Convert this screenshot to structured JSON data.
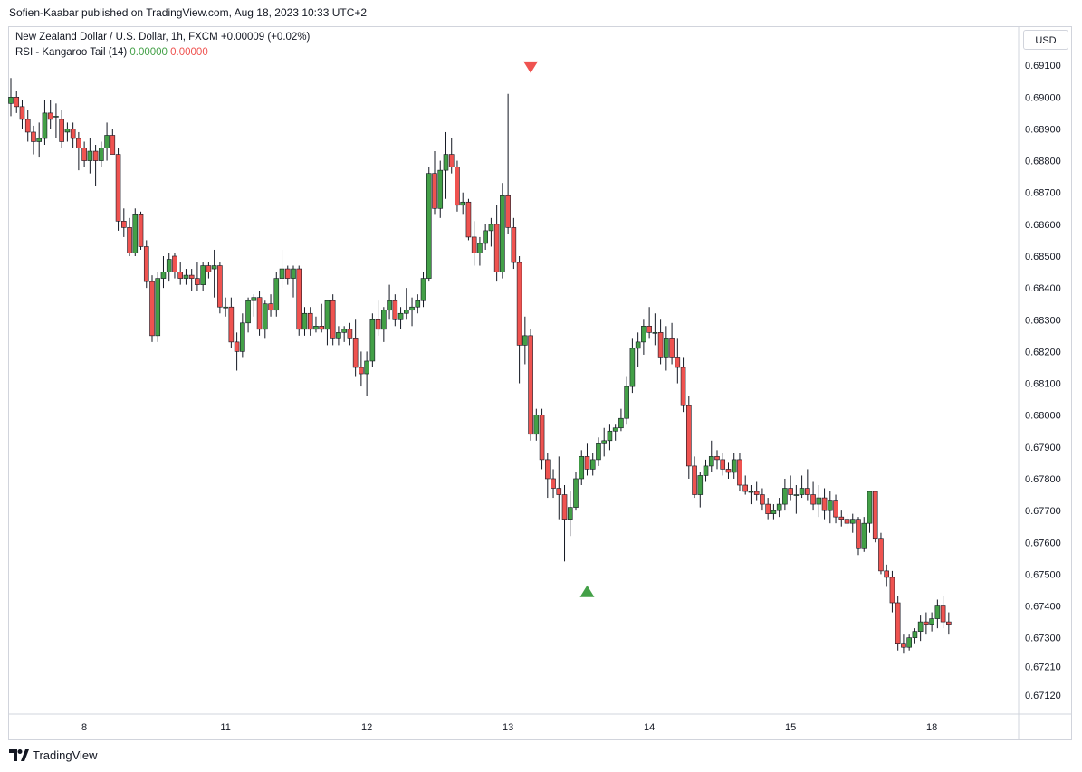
{
  "header": {
    "publisher_line": "Sofien-Kaabar published on TradingView.com, Aug 18, 2023 10:33 UTC+2"
  },
  "legend": {
    "symbol_line": "New Zealand Dollar / U.S. Dollar, 1h, FXCM",
    "change": "+0.00009 (+0.02%)",
    "indicator_name": "RSI - Kangaroo Tail (14)",
    "indicator_value_1": "0.00000",
    "indicator_value_2": "0.00000"
  },
  "currency_badge": "USD",
  "footer": {
    "brand": "TradingView",
    "logo_icon": "tradingview-logo-icon"
  },
  "colors": {
    "up": "#43a047",
    "down": "#ef5350",
    "axis_text": "#131722",
    "border": "#d1d4dc"
  },
  "chart_data": {
    "type": "candlestick",
    "title": "New Zealand Dollar / U.S. Dollar, 1h, FXCM",
    "ylim": [
      0.6706,
      0.6922
    ],
    "y_ticks": [
      "0.67120",
      "0.67210",
      "0.67300",
      "0.67400",
      "0.67500",
      "0.67600",
      "0.67700",
      "0.67800",
      "0.67900",
      "0.68000",
      "0.68100",
      "0.68200",
      "0.68300",
      "0.68400",
      "0.68500",
      "0.68600",
      "0.68700",
      "0.68800",
      "0.68900",
      "0.69000",
      "0.69100"
    ],
    "x_ticks": [
      {
        "label": "8",
        "index": 13
      },
      {
        "label": "11",
        "index": 38
      },
      {
        "label": "12",
        "index": 63
      },
      {
        "label": "13",
        "index": 88
      },
      {
        "label": "14",
        "index": 113
      },
      {
        "label": "15",
        "index": 138
      },
      {
        "label": "18",
        "index": 163
      }
    ],
    "grid": false,
    "signals": [
      {
        "type": "bearish",
        "marker": "down-triangle",
        "index": 92,
        "price": 0.69095
      },
      {
        "type": "bullish",
        "marker": "up-triangle",
        "index": 102,
        "price": 0.67445
      }
    ],
    "candles": [
      {
        "o": 0.6898,
        "h": 0.6906,
        "l": 0.6894,
        "c": 0.69
      },
      {
        "o": 0.69,
        "h": 0.6902,
        "l": 0.6895,
        "c": 0.6897
      },
      {
        "o": 0.6897,
        "h": 0.6899,
        "l": 0.689,
        "c": 0.6893
      },
      {
        "o": 0.6893,
        "h": 0.6896,
        "l": 0.6886,
        "c": 0.6889
      },
      {
        "o": 0.6889,
        "h": 0.6891,
        "l": 0.6882,
        "c": 0.6886
      },
      {
        "o": 0.6886,
        "h": 0.6892,
        "l": 0.6881,
        "c": 0.6887
      },
      {
        "o": 0.6887,
        "h": 0.6899,
        "l": 0.6885,
        "c": 0.6895
      },
      {
        "o": 0.6895,
        "h": 0.6899,
        "l": 0.689,
        "c": 0.6893
      },
      {
        "o": 0.6894,
        "h": 0.6898,
        "l": 0.6887,
        "c": 0.6894
      },
      {
        "o": 0.6893,
        "h": 0.6896,
        "l": 0.6884,
        "c": 0.6886
      },
      {
        "o": 0.6889,
        "h": 0.6892,
        "l": 0.6886,
        "c": 0.689
      },
      {
        "o": 0.689,
        "h": 0.6892,
        "l": 0.6884,
        "c": 0.6887
      },
      {
        "o": 0.6887,
        "h": 0.6889,
        "l": 0.6877,
        "c": 0.6884
      },
      {
        "o": 0.6884,
        "h": 0.6886,
        "l": 0.6878,
        "c": 0.688
      },
      {
        "o": 0.688,
        "h": 0.6887,
        "l": 0.6876,
        "c": 0.6883
      },
      {
        "o": 0.6883,
        "h": 0.6885,
        "l": 0.6872,
        "c": 0.688
      },
      {
        "o": 0.688,
        "h": 0.6886,
        "l": 0.6878,
        "c": 0.6884
      },
      {
        "o": 0.6884,
        "h": 0.6892,
        "l": 0.688,
        "c": 0.6888
      },
      {
        "o": 0.6888,
        "h": 0.689,
        "l": 0.6882,
        "c": 0.6882
      },
      {
        "o": 0.6882,
        "h": 0.6884,
        "l": 0.6858,
        "c": 0.6861
      },
      {
        "o": 0.6861,
        "h": 0.6865,
        "l": 0.6856,
        "c": 0.6859
      },
      {
        "o": 0.6859,
        "h": 0.6862,
        "l": 0.685,
        "c": 0.6851
      },
      {
        "o": 0.6851,
        "h": 0.6865,
        "l": 0.685,
        "c": 0.6863
      },
      {
        "o": 0.6863,
        "h": 0.6864,
        "l": 0.6852,
        "c": 0.6853
      },
      {
        "o": 0.6853,
        "h": 0.6855,
        "l": 0.684,
        "c": 0.6842
      },
      {
        "o": 0.6842,
        "h": 0.6844,
        "l": 0.6823,
        "c": 0.6825
      },
      {
        "o": 0.6825,
        "h": 0.6845,
        "l": 0.6823,
        "c": 0.6843
      },
      {
        "o": 0.6843,
        "h": 0.685,
        "l": 0.684,
        "c": 0.6845
      },
      {
        "o": 0.6845,
        "h": 0.6851,
        "l": 0.6842,
        "c": 0.6849
      },
      {
        "o": 0.685,
        "h": 0.6851,
        "l": 0.6843,
        "c": 0.6845
      },
      {
        "o": 0.6845,
        "h": 0.6848,
        "l": 0.6841,
        "c": 0.6843
      },
      {
        "o": 0.6843,
        "h": 0.6846,
        "l": 0.6841,
        "c": 0.6844
      },
      {
        "o": 0.6844,
        "h": 0.6846,
        "l": 0.6839,
        "c": 0.6843
      },
      {
        "o": 0.6843,
        "h": 0.6848,
        "l": 0.6839,
        "c": 0.6841
      },
      {
        "o": 0.6841,
        "h": 0.6848,
        "l": 0.6839,
        "c": 0.6847
      },
      {
        "o": 0.6847,
        "h": 0.6848,
        "l": 0.6843,
        "c": 0.6845
      },
      {
        "o": 0.6846,
        "h": 0.6852,
        "l": 0.6837,
        "c": 0.6847
      },
      {
        "o": 0.6847,
        "h": 0.6848,
        "l": 0.6832,
        "c": 0.6834
      },
      {
        "o": 0.6834,
        "h": 0.6837,
        "l": 0.6831,
        "c": 0.6834
      },
      {
        "o": 0.6834,
        "h": 0.6837,
        "l": 0.6821,
        "c": 0.6823
      },
      {
        "o": 0.6823,
        "h": 0.6826,
        "l": 0.6814,
        "c": 0.682
      },
      {
        "o": 0.682,
        "h": 0.6832,
        "l": 0.6818,
        "c": 0.6829
      },
      {
        "o": 0.6829,
        "h": 0.6837,
        "l": 0.6826,
        "c": 0.6836
      },
      {
        "o": 0.6836,
        "h": 0.6838,
        "l": 0.6831,
        "c": 0.6837
      },
      {
        "o": 0.6837,
        "h": 0.6839,
        "l": 0.6825,
        "c": 0.6827
      },
      {
        "o": 0.6827,
        "h": 0.6836,
        "l": 0.6824,
        "c": 0.6835
      },
      {
        "o": 0.6835,
        "h": 0.6838,
        "l": 0.6831,
        "c": 0.6833
      },
      {
        "o": 0.6833,
        "h": 0.6845,
        "l": 0.6831,
        "c": 0.6843
      },
      {
        "o": 0.6843,
        "h": 0.6852,
        "l": 0.684,
        "c": 0.6846
      },
      {
        "o": 0.6846,
        "h": 0.6847,
        "l": 0.6841,
        "c": 0.6843
      },
      {
        "o": 0.6843,
        "h": 0.6847,
        "l": 0.6837,
        "c": 0.6846
      },
      {
        "o": 0.6846,
        "h": 0.6847,
        "l": 0.6825,
        "c": 0.6827
      },
      {
        "o": 0.6827,
        "h": 0.6834,
        "l": 0.6825,
        "c": 0.6832
      },
      {
        "o": 0.6832,
        "h": 0.6834,
        "l": 0.6825,
        "c": 0.6827
      },
      {
        "o": 0.6827,
        "h": 0.6831,
        "l": 0.6826,
        "c": 0.6828
      },
      {
        "o": 0.6828,
        "h": 0.6835,
        "l": 0.6826,
        "c": 0.6827
      },
      {
        "o": 0.6827,
        "h": 0.6836,
        "l": 0.6822,
        "c": 0.6836
      },
      {
        "o": 0.6836,
        "h": 0.6838,
        "l": 0.6822,
        "c": 0.6824
      },
      {
        "o": 0.6824,
        "h": 0.6828,
        "l": 0.6822,
        "c": 0.6826
      },
      {
        "o": 0.6826,
        "h": 0.6828,
        "l": 0.6823,
        "c": 0.6827
      },
      {
        "o": 0.6827,
        "h": 0.6829,
        "l": 0.6822,
        "c": 0.6824
      },
      {
        "o": 0.6824,
        "h": 0.683,
        "l": 0.6812,
        "c": 0.6815
      },
      {
        "o": 0.6815,
        "h": 0.682,
        "l": 0.6809,
        "c": 0.6813
      },
      {
        "o": 0.6813,
        "h": 0.682,
        "l": 0.6806,
        "c": 0.6817
      },
      {
        "o": 0.6817,
        "h": 0.6832,
        "l": 0.6815,
        "c": 0.683
      },
      {
        "o": 0.683,
        "h": 0.6836,
        "l": 0.6825,
        "c": 0.6827
      },
      {
        "o": 0.6827,
        "h": 0.6834,
        "l": 0.6823,
        "c": 0.6833
      },
      {
        "o": 0.6833,
        "h": 0.6841,
        "l": 0.683,
        "c": 0.6836
      },
      {
        "o": 0.6836,
        "h": 0.6838,
        "l": 0.6828,
        "c": 0.683
      },
      {
        "o": 0.683,
        "h": 0.6834,
        "l": 0.6827,
        "c": 0.6832
      },
      {
        "o": 0.6832,
        "h": 0.684,
        "l": 0.683,
        "c": 0.6833
      },
      {
        "o": 0.6833,
        "h": 0.6837,
        "l": 0.6828,
        "c": 0.6834
      },
      {
        "o": 0.6834,
        "h": 0.6838,
        "l": 0.6832,
        "c": 0.6836
      },
      {
        "o": 0.6836,
        "h": 0.6845,
        "l": 0.6834,
        "c": 0.6843
      },
      {
        "o": 0.6843,
        "h": 0.6878,
        "l": 0.6842,
        "c": 0.6876
      },
      {
        "o": 0.6876,
        "h": 0.6883,
        "l": 0.6863,
        "c": 0.6865
      },
      {
        "o": 0.6865,
        "h": 0.688,
        "l": 0.6862,
        "c": 0.6877
      },
      {
        "o": 0.6877,
        "h": 0.6889,
        "l": 0.6868,
        "c": 0.6882
      },
      {
        "o": 0.6882,
        "h": 0.6887,
        "l": 0.6876,
        "c": 0.6878
      },
      {
        "o": 0.6878,
        "h": 0.688,
        "l": 0.6864,
        "c": 0.6866
      },
      {
        "o": 0.6866,
        "h": 0.687,
        "l": 0.6863,
        "c": 0.6867
      },
      {
        "o": 0.6867,
        "h": 0.6868,
        "l": 0.6855,
        "c": 0.6856
      },
      {
        "o": 0.6856,
        "h": 0.6861,
        "l": 0.6847,
        "c": 0.6851
      },
      {
        "o": 0.6851,
        "h": 0.6856,
        "l": 0.6847,
        "c": 0.6854
      },
      {
        "o": 0.6854,
        "h": 0.686,
        "l": 0.6852,
        "c": 0.6858
      },
      {
        "o": 0.6858,
        "h": 0.6862,
        "l": 0.6853,
        "c": 0.686
      },
      {
        "o": 0.686,
        "h": 0.6866,
        "l": 0.6842,
        "c": 0.6845
      },
      {
        "o": 0.6845,
        "h": 0.6873,
        "l": 0.6843,
        "c": 0.6869
      },
      {
        "o": 0.6869,
        "h": 0.6901,
        "l": 0.6857,
        "c": 0.6859
      },
      {
        "o": 0.6859,
        "h": 0.6862,
        "l": 0.6846,
        "c": 0.6848
      },
      {
        "o": 0.6848,
        "h": 0.685,
        "l": 0.681,
        "c": 0.6822
      },
      {
        "o": 0.6822,
        "h": 0.6831,
        "l": 0.6816,
        "c": 0.6825
      },
      {
        "o": 0.6825,
        "h": 0.6827,
        "l": 0.6792,
        "c": 0.6794
      },
      {
        "o": 0.6794,
        "h": 0.6802,
        "l": 0.6792,
        "c": 0.68
      },
      {
        "o": 0.68,
        "h": 0.6802,
        "l": 0.6783,
        "c": 0.6786
      },
      {
        "o": 0.6786,
        "h": 0.6788,
        "l": 0.6774,
        "c": 0.678
      },
      {
        "o": 0.678,
        "h": 0.6783,
        "l": 0.6774,
        "c": 0.6777
      },
      {
        "o": 0.6777,
        "h": 0.6787,
        "l": 0.6767,
        "c": 0.6775
      },
      {
        "o": 0.6775,
        "h": 0.6778,
        "l": 0.6754,
        "c": 0.6767
      },
      {
        "o": 0.6767,
        "h": 0.6776,
        "l": 0.6762,
        "c": 0.6771
      },
      {
        "o": 0.6771,
        "h": 0.6782,
        "l": 0.677,
        "c": 0.678
      },
      {
        "o": 0.678,
        "h": 0.6789,
        "l": 0.6778,
        "c": 0.6787
      },
      {
        "o": 0.6787,
        "h": 0.6791,
        "l": 0.6781,
        "c": 0.6783
      },
      {
        "o": 0.6783,
        "h": 0.6788,
        "l": 0.6781,
        "c": 0.6786
      },
      {
        "o": 0.6786,
        "h": 0.6793,
        "l": 0.6784,
        "c": 0.6791
      },
      {
        "o": 0.6791,
        "h": 0.6796,
        "l": 0.6787,
        "c": 0.6792
      },
      {
        "o": 0.6792,
        "h": 0.6797,
        "l": 0.6789,
        "c": 0.6795
      },
      {
        "o": 0.6795,
        "h": 0.6797,
        "l": 0.6792,
        "c": 0.6796
      },
      {
        "o": 0.6796,
        "h": 0.6802,
        "l": 0.6795,
        "c": 0.6799
      },
      {
        "o": 0.6799,
        "h": 0.6812,
        "l": 0.6797,
        "c": 0.6809
      },
      {
        "o": 0.6809,
        "h": 0.6824,
        "l": 0.6807,
        "c": 0.6821
      },
      {
        "o": 0.6821,
        "h": 0.6826,
        "l": 0.6815,
        "c": 0.6823
      },
      {
        "o": 0.6823,
        "h": 0.683,
        "l": 0.6819,
        "c": 0.6828
      },
      {
        "o": 0.6828,
        "h": 0.6834,
        "l": 0.6824,
        "c": 0.6826
      },
      {
        "o": 0.6826,
        "h": 0.6832,
        "l": 0.6822,
        "c": 0.6826
      },
      {
        "o": 0.6826,
        "h": 0.683,
        "l": 0.6816,
        "c": 0.6818
      },
      {
        "o": 0.6818,
        "h": 0.6828,
        "l": 0.6814,
        "c": 0.6824
      },
      {
        "o": 0.6824,
        "h": 0.6829,
        "l": 0.6816,
        "c": 0.6818
      },
      {
        "o": 0.6818,
        "h": 0.6824,
        "l": 0.681,
        "c": 0.6815
      },
      {
        "o": 0.6815,
        "h": 0.6818,
        "l": 0.6801,
        "c": 0.6803
      },
      {
        "o": 0.6803,
        "h": 0.6806,
        "l": 0.678,
        "c": 0.6784
      },
      {
        "o": 0.6784,
        "h": 0.6787,
        "l": 0.6774,
        "c": 0.6775
      },
      {
        "o": 0.6775,
        "h": 0.6782,
        "l": 0.6771,
        "c": 0.6781
      },
      {
        "o": 0.6781,
        "h": 0.6786,
        "l": 0.6779,
        "c": 0.6784
      },
      {
        "o": 0.6784,
        "h": 0.6792,
        "l": 0.6782,
        "c": 0.6787
      },
      {
        "o": 0.6787,
        "h": 0.6789,
        "l": 0.6783,
        "c": 0.6786
      },
      {
        "o": 0.6786,
        "h": 0.6788,
        "l": 0.6781,
        "c": 0.6783
      },
      {
        "o": 0.6783,
        "h": 0.6785,
        "l": 0.678,
        "c": 0.6782
      },
      {
        "o": 0.6782,
        "h": 0.6788,
        "l": 0.678,
        "c": 0.6786
      },
      {
        "o": 0.6786,
        "h": 0.6788,
        "l": 0.6776,
        "c": 0.6778
      },
      {
        "o": 0.6778,
        "h": 0.6781,
        "l": 0.6775,
        "c": 0.6776
      },
      {
        "o": 0.6776,
        "h": 0.6778,
        "l": 0.6772,
        "c": 0.6776
      },
      {
        "o": 0.6776,
        "h": 0.6779,
        "l": 0.6773,
        "c": 0.6775
      },
      {
        "o": 0.6775,
        "h": 0.6777,
        "l": 0.677,
        "c": 0.6772
      },
      {
        "o": 0.6772,
        "h": 0.6774,
        "l": 0.6767,
        "c": 0.6769
      },
      {
        "o": 0.6769,
        "h": 0.6772,
        "l": 0.6767,
        "c": 0.677
      },
      {
        "o": 0.677,
        "h": 0.6774,
        "l": 0.6768,
        "c": 0.6772
      },
      {
        "o": 0.6772,
        "h": 0.678,
        "l": 0.677,
        "c": 0.6777
      },
      {
        "o": 0.6777,
        "h": 0.6781,
        "l": 0.6773,
        "c": 0.6775
      },
      {
        "o": 0.6775,
        "h": 0.6778,
        "l": 0.6769,
        "c": 0.6775
      },
      {
        "o": 0.6775,
        "h": 0.6781,
        "l": 0.6774,
        "c": 0.6777
      },
      {
        "o": 0.6777,
        "h": 0.6783,
        "l": 0.6773,
        "c": 0.6775
      },
      {
        "o": 0.6775,
        "h": 0.6779,
        "l": 0.677,
        "c": 0.6772
      },
      {
        "o": 0.6772,
        "h": 0.6778,
        "l": 0.6768,
        "c": 0.6774
      },
      {
        "o": 0.6774,
        "h": 0.6777,
        "l": 0.6767,
        "c": 0.677
      },
      {
        "o": 0.677,
        "h": 0.6776,
        "l": 0.6766,
        "c": 0.6773
      },
      {
        "o": 0.6773,
        "h": 0.6775,
        "l": 0.6766,
        "c": 0.6768
      },
      {
        "o": 0.6768,
        "h": 0.677,
        "l": 0.6765,
        "c": 0.6767
      },
      {
        "o": 0.6767,
        "h": 0.6769,
        "l": 0.6764,
        "c": 0.6766
      },
      {
        "o": 0.6766,
        "h": 0.6769,
        "l": 0.6763,
        "c": 0.6767
      },
      {
        "o": 0.6767,
        "h": 0.6768,
        "l": 0.6756,
        "c": 0.6758
      },
      {
        "o": 0.6758,
        "h": 0.6768,
        "l": 0.6757,
        "c": 0.6766
      },
      {
        "o": 0.6766,
        "h": 0.6776,
        "l": 0.6763,
        "c": 0.6776
      },
      {
        "o": 0.6776,
        "h": 0.6776,
        "l": 0.676,
        "c": 0.6761
      },
      {
        "o": 0.6761,
        "h": 0.6763,
        "l": 0.675,
        "c": 0.6751
      },
      {
        "o": 0.6751,
        "h": 0.6753,
        "l": 0.6746,
        "c": 0.6749
      },
      {
        "o": 0.6749,
        "h": 0.6751,
        "l": 0.6738,
        "c": 0.6741
      },
      {
        "o": 0.6741,
        "h": 0.6743,
        "l": 0.6726,
        "c": 0.6728
      },
      {
        "o": 0.6728,
        "h": 0.6731,
        "l": 0.6725,
        "c": 0.6727
      },
      {
        "o": 0.6727,
        "h": 0.6731,
        "l": 0.6726,
        "c": 0.673
      },
      {
        "o": 0.673,
        "h": 0.6733,
        "l": 0.6728,
        "c": 0.6732
      },
      {
        "o": 0.6732,
        "h": 0.6737,
        "l": 0.6729,
        "c": 0.6735
      },
      {
        "o": 0.6735,
        "h": 0.6738,
        "l": 0.6731,
        "c": 0.6734
      },
      {
        "o": 0.6734,
        "h": 0.6738,
        "l": 0.6732,
        "c": 0.6736
      },
      {
        "o": 0.6736,
        "h": 0.6742,
        "l": 0.6733,
        "c": 0.674
      },
      {
        "o": 0.674,
        "h": 0.6743,
        "l": 0.6733,
        "c": 0.6735
      },
      {
        "o": 0.6735,
        "h": 0.6738,
        "l": 0.6731,
        "c": 0.6734
      }
    ]
  }
}
